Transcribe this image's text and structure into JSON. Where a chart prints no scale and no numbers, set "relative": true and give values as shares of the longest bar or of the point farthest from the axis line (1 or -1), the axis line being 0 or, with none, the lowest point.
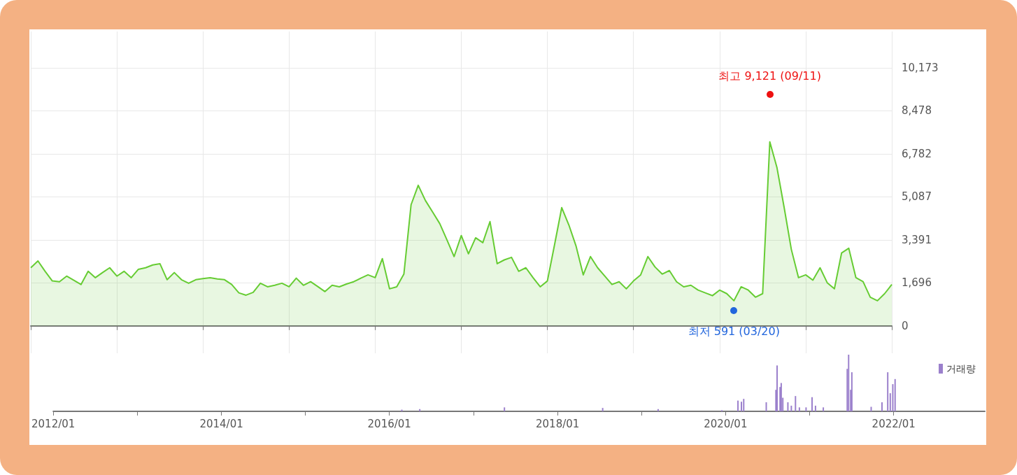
{
  "chart_data": [
    {
      "type": "area",
      "categories": [
        null,
        null,
        null,
        null,
        null,
        null,
        null,
        null,
        null,
        null,
        null,
        null,
        null,
        null,
        null,
        null,
        null,
        null,
        null,
        null,
        null,
        null,
        null,
        null,
        null,
        null,
        null,
        null,
        null,
        null,
        null,
        null,
        null,
        null,
        null,
        null,
        null,
        null,
        null,
        null,
        null,
        null,
        null,
        null,
        null,
        null,
        null,
        null,
        null,
        null,
        null,
        null,
        null,
        null,
        null,
        null,
        null,
        null,
        null,
        null,
        null,
        null,
        null,
        null,
        null,
        null,
        null,
        null,
        null,
        null,
        null,
        null,
        null,
        null,
        null,
        null,
        null,
        null,
        null,
        null,
        null,
        null,
        null,
        null,
        null,
        null,
        null,
        null,
        null,
        null,
        null,
        null,
        null,
        null,
        null,
        null,
        null,
        null,
        null,
        null,
        null,
        null,
        null,
        null,
        null,
        null,
        null,
        null,
        null,
        null,
        null,
        null,
        null,
        null,
        null,
        null,
        null,
        null,
        null,
        null,
        null
      ],
      "ylim": [
        -1080,
        11600
      ],
      "yticks": [
        {
          "value": 0,
          "label": "0"
        },
        {
          "value": 1696,
          "label": "1,696"
        },
        {
          "value": 3391,
          "label": "3,391"
        },
        {
          "value": 5087,
          "label": "5,087"
        },
        {
          "value": 6782,
          "label": "6,782"
        },
        {
          "value": 8478,
          "label": "8,478"
        },
        {
          "value": 10173,
          "label": "10,173"
        }
      ],
      "tick_labels": "y",
      "grid": true,
      "series": [
        {
          "color": "#66cc33",
          "values": [
            2290,
            2560,
            2150,
            1770,
            1740,
            1960,
            1800,
            1630,
            2150,
            1900,
            2100,
            2290,
            1960,
            2150,
            1900,
            2230,
            2290,
            2400,
            2450,
            1820,
            2100,
            1820,
            1680,
            1820,
            1860,
            1900,
            1850,
            1820,
            1630,
            1300,
            1210,
            1320,
            1680,
            1540,
            1600,
            1680,
            1540,
            1880,
            1600,
            1740,
            1550,
            1350,
            1600,
            1540,
            1650,
            1740,
            1880,
            2010,
            1900,
            2650,
            1460,
            1540,
            2040,
            4770,
            5540,
            4940,
            4490,
            4030,
            3390,
            2730,
            3560,
            2840,
            3470,
            3280,
            4110,
            2450,
            2600,
            2700,
            2150,
            2290,
            1900,
            1540,
            1770,
            3200,
            4660,
            3970,
            3140,
            2010,
            2730,
            2290,
            1960,
            1630,
            1740,
            1460,
            1770,
            2010,
            2730,
            2320,
            2040,
            2180,
            1740,
            1540,
            1600,
            1410,
            1300,
            1190,
            1410,
            1270,
            990,
            1540,
            1410,
            1130,
            1270,
            7250,
            6230,
            4660,
            3010,
            1900,
            2010,
            1800,
            2290,
            1700,
            1460,
            2870,
            3060,
            1900,
            1740,
            1130,
            990,
            1270,
            1630
          ]
        }
      ],
      "annotations": [
        {
          "text": "최고 9,121 (09/11)",
          "y": 9121
        },
        {
          "text": "최저 591 (03/20)",
          "y": 591
        }
      ]
    },
    {
      "type": "bar",
      "relative": true,
      "xlim": [
        "2012-01-01",
        "2023-02-01"
      ],
      "xticks": [
        {
          "value": "2012-01",
          "label": "2012/01"
        },
        {
          "value": "2013-01",
          "label": null
        },
        {
          "value": "2014-01",
          "label": "2014/01"
        },
        {
          "value": "2015-01",
          "label": null
        },
        {
          "value": "2016-01",
          "label": "2016/01"
        },
        {
          "value": "2017-01",
          "label": null
        },
        {
          "value": "2018-01",
          "label": "2018/01"
        },
        {
          "value": "2019-01",
          "label": null
        },
        {
          "value": "2020-01",
          "label": "2020/01"
        },
        {
          "value": "2021-01",
          "label": null
        },
        {
          "value": "2022-01",
          "label": "2022/01"
        }
      ],
      "tick_labels": "x",
      "legend": "top right",
      "series": [
        {
          "name": "거래량",
          "color": "#9b80cc",
          "x": [
            "2016-02-24",
            "2016-05-12",
            "2017-05-15",
            "2018-07-16",
            "2019-03-14",
            "2019-12-16",
            "2020-02-24",
            "2020-03-10",
            "2020-03-20",
            "2020-06-26",
            "2020-08-07",
            "2020-08-12",
            "2020-08-25",
            "2020-08-30",
            "2020-09-06",
            "2020-09-28",
            "2020-10-13",
            "2020-10-31",
            "2020-11-17",
            "2020-12-16",
            "2021-01-11",
            "2021-01-26",
            "2021-03-01",
            "2021-06-13",
            "2021-06-19",
            "2021-06-28",
            "2021-07-03",
            "2021-09-25",
            "2021-11-11",
            "2021-12-06",
            "2021-12-17",
            "2021-12-28",
            "2022-01-07"
          ],
          "values": [
            0.03,
            0.04,
            0.07,
            0.06,
            0.04,
            0.02,
            0.19,
            0.17,
            0.22,
            0.16,
            0.38,
            0.81,
            0.43,
            0.5,
            0.24,
            0.16,
            0.1,
            0.27,
            0.07,
            0.07,
            0.25,
            0.1,
            0.07,
            0.75,
            1,
            0.38,
            0.69,
            0.08,
            0.16,
            0.69,
            0.32,
            0.48,
            0.57
          ]
        }
      ]
    }
  ]
}
